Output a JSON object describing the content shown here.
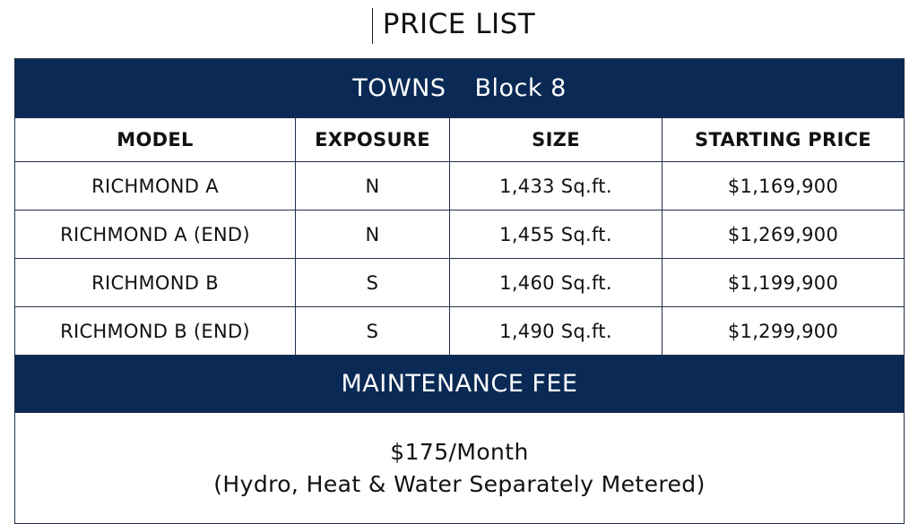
{
  "title": "PRICE LIST",
  "section": {
    "name": "TOWNS",
    "block": "Block 8"
  },
  "columns": [
    "MODEL",
    "EXPOSURE",
    "SIZE",
    "STARTING PRICE"
  ],
  "rows": [
    {
      "model": "RICHMOND A",
      "exposure": "N",
      "size": "1,433 Sq.ft.",
      "price": "$1,169,900"
    },
    {
      "model": "RICHMOND A (END)",
      "exposure": "N",
      "size": "1,455 Sq.ft.",
      "price": "$1,269,900"
    },
    {
      "model": "RICHMOND B",
      "exposure": "S",
      "size": "1,460 Sq.ft.",
      "price": "$1,199,900"
    },
    {
      "model": "RICHMOND B (END)",
      "exposure": "S",
      "size": "1,490 Sq.ft.",
      "price": "$1,299,900"
    }
  ],
  "maintenance": {
    "heading": "MAINTENANCE FEE",
    "amount": "$175/Month",
    "note": "(Hydro, Heat & Water Separately Metered)"
  },
  "colors": {
    "band": "#0a2a55",
    "border": "#1f2f4a",
    "text": "#111111"
  }
}
